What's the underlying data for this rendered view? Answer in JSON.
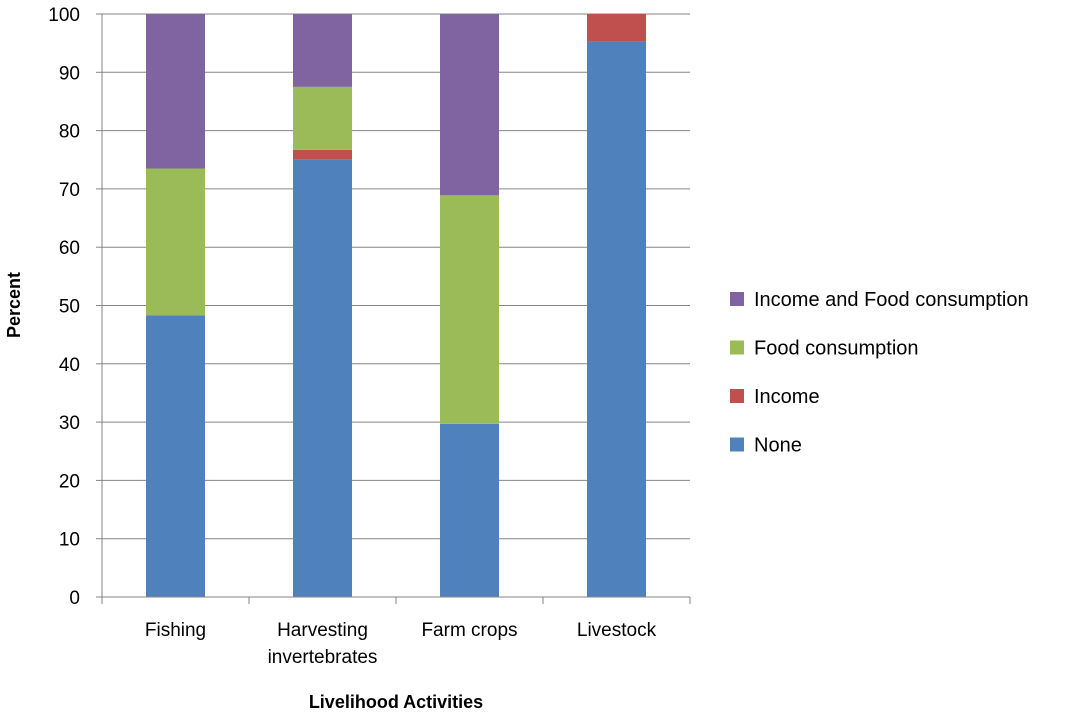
{
  "chart_data": {
    "type": "bar",
    "stacked": true,
    "title": "",
    "xlabel": "Livelihood Activities",
    "ylabel": "Percent",
    "ylim": [
      0,
      100
    ],
    "yticks": [
      0,
      10,
      20,
      30,
      40,
      50,
      60,
      70,
      80,
      90,
      100
    ],
    "grid": true,
    "legend_position": "right",
    "categories": [
      [
        "Fishing"
      ],
      [
        "Harvesting",
        "invertebrates"
      ],
      [
        "Farm crops"
      ],
      [
        "Livestock"
      ]
    ],
    "series": [
      {
        "name": "None",
        "color": "#4F81BD",
        "values": [
          48.3,
          75.0,
          29.7,
          95.3
        ]
      },
      {
        "name": "Income",
        "color": "#C0504D",
        "values": [
          0.0,
          1.7,
          0.0,
          4.7
        ]
      },
      {
        "name": "Food consumption",
        "color": "#9BBB59",
        "values": [
          25.2,
          10.8,
          39.2,
          0.0
        ]
      },
      {
        "name": "Income and Food consumption",
        "color": "#8064A2",
        "values": [
          26.5,
          12.5,
          31.1,
          0.0
        ]
      }
    ]
  }
}
